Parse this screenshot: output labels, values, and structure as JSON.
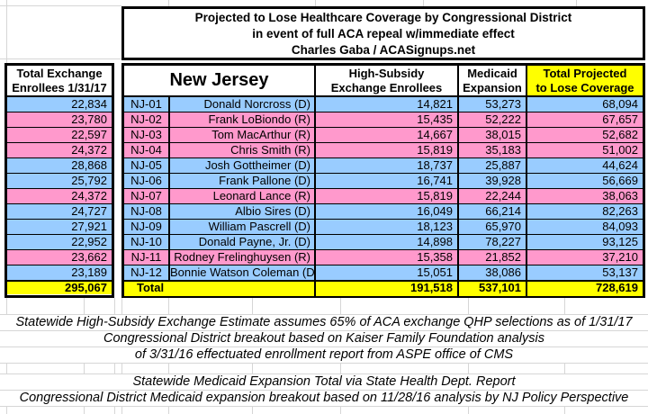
{
  "title": {
    "line1": "Projected to Lose Healthcare Coverage by Congressional District",
    "line2": "in event of full ACA repeal w/immediate effect",
    "line3": "Charles Gaba / ACASignups.net"
  },
  "left_table": {
    "header": "Total Exchange\nEnrollees 1/31/17",
    "total": "295,067"
  },
  "main_table": {
    "state_header": "New Jersey",
    "col_high_subsidy": {
      "line1": "High-Subsidy",
      "line2": "Exchange Enrollees"
    },
    "col_medicaid": {
      "line1": "Medicaid",
      "line2": "Expansion"
    },
    "col_total": {
      "line1": "Total Projected",
      "line2": "to Lose Coverage"
    },
    "total_label": "Total",
    "totals": {
      "high_subsidy": "191,518",
      "medicaid": "537,101",
      "total": "728,619"
    }
  },
  "rows": [
    {
      "district": "NJ-01",
      "rep": "Donald Norcross (D)",
      "party": "D",
      "exchange_total": "22,834",
      "high_subsidy": "14,821",
      "medicaid": "53,273",
      "total": "68,094"
    },
    {
      "district": "NJ-02",
      "rep": "Frank LoBiondo (R)",
      "party": "R",
      "exchange_total": "23,780",
      "high_subsidy": "15,435",
      "medicaid": "52,222",
      "total": "67,657"
    },
    {
      "district": "NJ-03",
      "rep": "Tom MacArthur (R)",
      "party": "R",
      "exchange_total": "22,597",
      "high_subsidy": "14,667",
      "medicaid": "38,015",
      "total": "52,682"
    },
    {
      "district": "NJ-04",
      "rep": "Chris Smith (R)",
      "party": "R",
      "exchange_total": "24,372",
      "high_subsidy": "15,819",
      "medicaid": "35,183",
      "total": "51,002"
    },
    {
      "district": "NJ-05",
      "rep": "Josh Gottheimer (D)",
      "party": "D",
      "exchange_total": "28,868",
      "high_subsidy": "18,737",
      "medicaid": "25,887",
      "total": "44,624"
    },
    {
      "district": "NJ-06",
      "rep": "Frank Pallone (D)",
      "party": "D",
      "exchange_total": "25,792",
      "high_subsidy": "16,741",
      "medicaid": "39,928",
      "total": "56,669"
    },
    {
      "district": "NJ-07",
      "rep": "Leonard Lance (R)",
      "party": "R",
      "exchange_total": "24,372",
      "high_subsidy": "15,819",
      "medicaid": "22,244",
      "total": "38,063"
    },
    {
      "district": "NJ-08",
      "rep": "Albio Sires (D)",
      "party": "D",
      "exchange_total": "24,727",
      "high_subsidy": "16,049",
      "medicaid": "66,214",
      "total": "82,263"
    },
    {
      "district": "NJ-09",
      "rep": "William Pascrell (D)",
      "party": "D",
      "exchange_total": "27,921",
      "high_subsidy": "18,123",
      "medicaid": "65,970",
      "total": "84,093"
    },
    {
      "district": "NJ-10",
      "rep": "Donald Payne, Jr. (D)",
      "party": "D",
      "exchange_total": "22,952",
      "high_subsidy": "14,898",
      "medicaid": "78,227",
      "total": "93,125"
    },
    {
      "district": "NJ-11",
      "rep": "Rodney Frelinghuysen (R)",
      "party": "R",
      "exchange_total": "23,662",
      "high_subsidy": "15,358",
      "medicaid": "21,852",
      "total": "37,210"
    },
    {
      "district": "NJ-12",
      "rep": "Bonnie Watson Coleman (D)",
      "party": "D",
      "exchange_total": "23,189",
      "high_subsidy": "15,051",
      "medicaid": "38,086",
      "total": "53,137"
    }
  ],
  "footnotes": [
    "Statewide High-Subsidy Exchange Estimate assumes 65% of ACA exchange QHP selections as of 1/31/17",
    "Congressional District breakout based on Kaiser Family Foundation analysis",
    "of 3/31/16 effectuated enrollment report from ASPE office of CMS",
    "Statewide Medicaid Expansion Total via State Health Dept. Report",
    "Congressional District Medicaid expansion breakout based on 11/28/16 analysis by NJ Policy Perspective"
  ],
  "colors": {
    "dem_blue": "#99CCFF",
    "rep_pink": "#FF99CC",
    "highlight_yellow": "#FFFF00"
  }
}
